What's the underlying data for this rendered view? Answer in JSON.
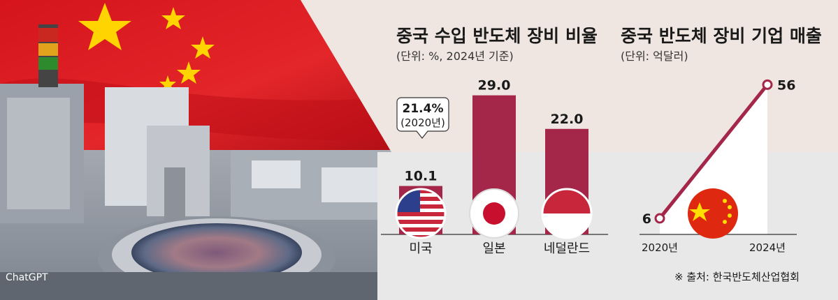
{
  "photo_credit": "ChatGPT",
  "source": "※ 출처: 한국반도체산업협회",
  "chart_data": [
    {
      "type": "bar",
      "title": "중국 수입 반도체 장비 비율",
      "subtitle": "(단위: %, 2024년 기준)",
      "categories": [
        "미국",
        "일본",
        "네덜란드"
      ],
      "values": [
        10.1,
        29.0,
        22.0
      ],
      "value_labels": [
        "10.1",
        "29.0",
        "22.0"
      ],
      "ylim": [
        0,
        32
      ],
      "color": "#a4274a",
      "annotation": {
        "category": "미국",
        "value_text": "21.4%",
        "year_text": "(2020년)"
      }
    },
    {
      "type": "line",
      "title": "중국 반도체 장비 기업 매출",
      "subtitle": "(단위: 억달러)",
      "x": [
        "2020년",
        "2024년"
      ],
      "values": [
        6,
        56
      ],
      "value_labels": [
        "6",
        "56"
      ],
      "ylim": [
        0,
        60
      ],
      "color": "#a4274a"
    }
  ]
}
